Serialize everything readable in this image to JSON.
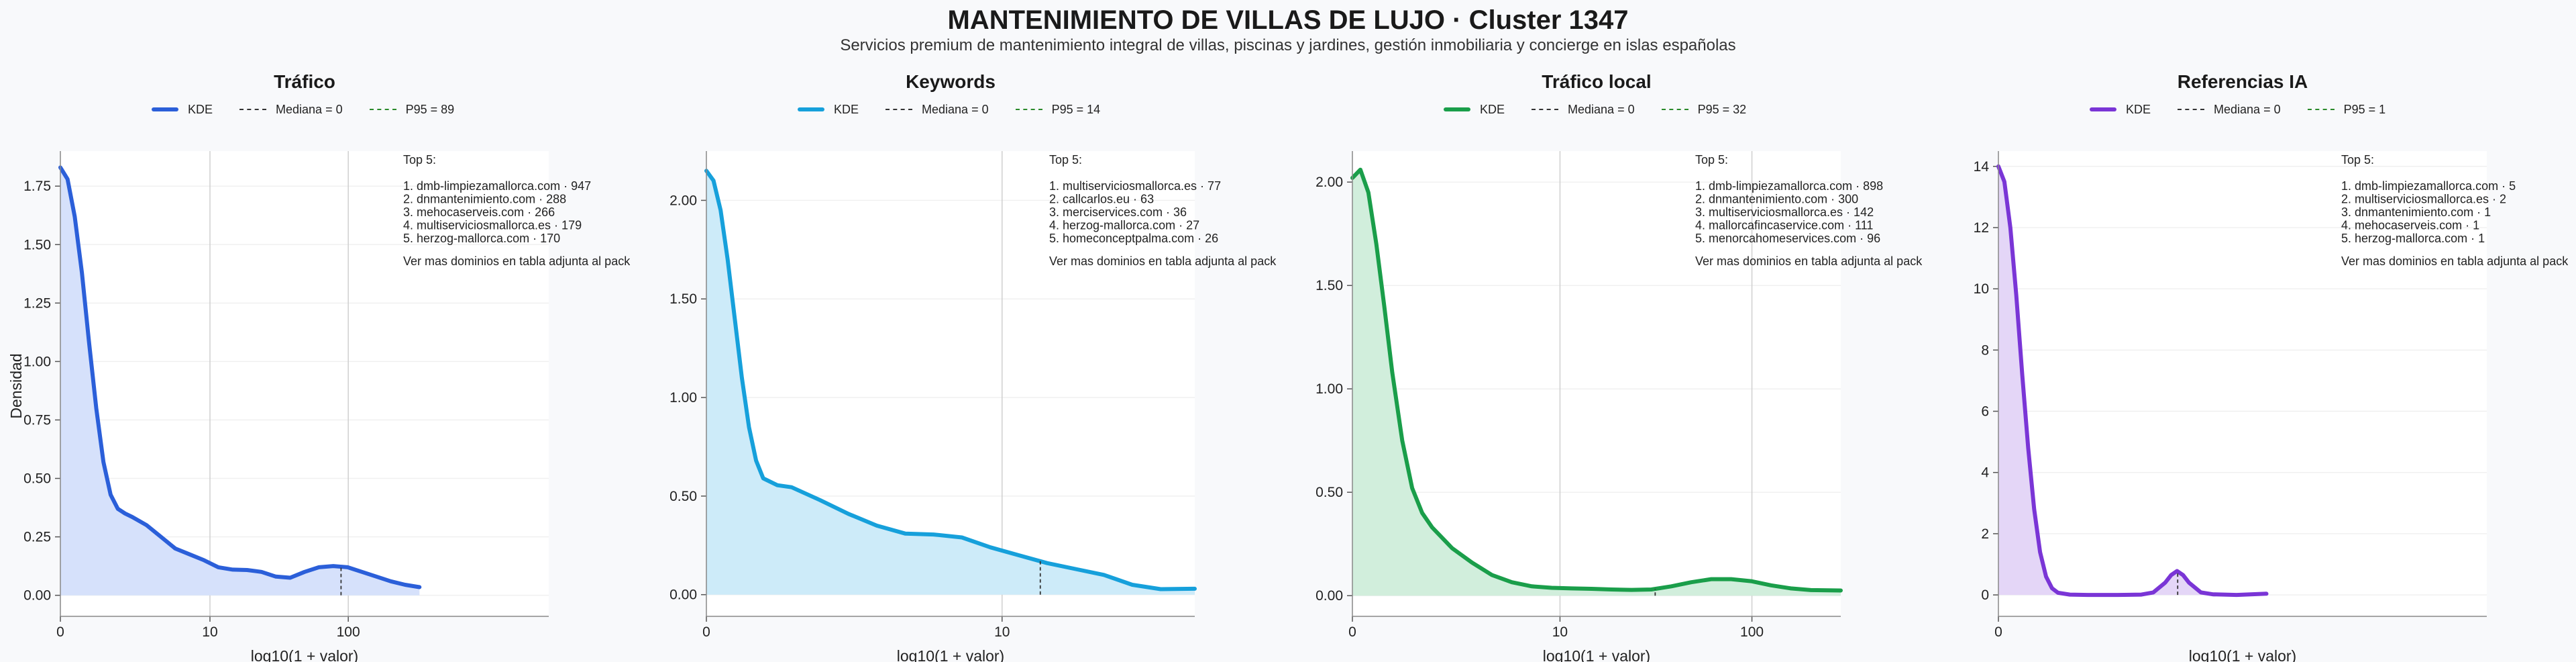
{
  "header": {
    "title": "MANTENIMIENTO DE VILLAS DE LUJO · Cluster 1347",
    "subtitle": "Servicios premium de mantenimiento integral de villas, piscinas y jardines, gestión inmobiliaria y concierge en islas españolas"
  },
  "legend_labels": {
    "kde": "KDE"
  },
  "y_axis_label": "Densidad",
  "chart_data": [
    {
      "type": "area",
      "title": "Tráfico",
      "xlabel": "log10(1 + valor)",
      "ylabel": "Densidad",
      "x_scale": "log10(1+x)",
      "x_ticks": [
        0,
        10,
        100
      ],
      "x_range": [
        0,
        3.4
      ],
      "y_ticks": [
        0.0,
        0.25,
        0.5,
        0.75,
        1.0,
        1.25,
        1.5,
        1.75
      ],
      "ylim": [
        -0.09,
        1.9
      ],
      "color": "#2b5fd9",
      "fill": "#d6e1fb",
      "median_label": "Mediana = 0",
      "p95_label": "P95 = 89",
      "median_log": 0,
      "p95_log": 1.954,
      "curve": {
        "x": [
          0,
          0.05,
          0.1,
          0.15,
          0.2,
          0.25,
          0.3,
          0.35,
          0.4,
          0.45,
          0.5,
          0.6,
          0.7,
          0.8,
          0.9,
          1.0,
          1.1,
          1.2,
          1.3,
          1.4,
          1.5,
          1.6,
          1.7,
          1.8,
          1.9,
          2.0,
          2.1,
          2.2,
          2.3,
          2.4,
          2.5
        ],
        "y": [
          1.83,
          1.78,
          1.62,
          1.38,
          1.08,
          0.8,
          0.57,
          0.43,
          0.37,
          0.35,
          0.335,
          0.3,
          0.25,
          0.2,
          0.175,
          0.15,
          0.12,
          0.11,
          0.108,
          0.1,
          0.08,
          0.075,
          0.1,
          0.12,
          0.125,
          0.12,
          0.1,
          0.08,
          0.06,
          0.045,
          0.035
        ]
      },
      "top5": {
        "heading": "Top 5:",
        "items": [
          "1. dmb-limpiezamallorca.com · 947",
          "2. dnmantenimiento.com · 288",
          "3. mehocaserveis.com · 266",
          "4. multiserviciosmallorca.es · 179",
          "5. herzog-mallorca.com · 170"
        ],
        "footer": "Ver mas dominios en tabla adjunta al pack"
      }
    },
    {
      "type": "area",
      "title": "Keywords",
      "xlabel": "log10(1 + valor)",
      "x_scale": "log10(1+x)",
      "x_ticks": [
        0,
        10
      ],
      "x_range": [
        0,
        1.72
      ],
      "y_ticks": [
        0.0,
        0.5,
        1.0,
        1.5,
        2.0
      ],
      "ylim": [
        -0.11,
        2.25
      ],
      "color": "#16a0db",
      "fill": "#cdebf9",
      "median_label": "Mediana = 0",
      "p95_label": "P95 = 14",
      "median_log": 0,
      "p95_log": 1.176,
      "curve": {
        "x": [
          0,
          0.025,
          0.05,
          0.075,
          0.1,
          0.125,
          0.15,
          0.175,
          0.2,
          0.25,
          0.3,
          0.4,
          0.5,
          0.6,
          0.7,
          0.8,
          0.9,
          1.0,
          1.1,
          1.2,
          1.3,
          1.4,
          1.5,
          1.6,
          1.72
        ],
        "y": [
          2.15,
          2.1,
          1.95,
          1.7,
          1.4,
          1.1,
          0.85,
          0.68,
          0.59,
          0.555,
          0.545,
          0.48,
          0.41,
          0.35,
          0.31,
          0.305,
          0.29,
          0.24,
          0.2,
          0.16,
          0.13,
          0.1,
          0.05,
          0.028,
          0.03
        ]
      },
      "top5": {
        "heading": "Top 5:",
        "items": [
          "1. multiserviciosmallorca.es · 77",
          "2. callcarlos.eu · 63",
          "3. merciservices.com · 36",
          "4. herzog-mallorca.com · 27",
          "5. homeconceptpalma.com · 26"
        ],
        "footer": "Ver mas dominios en tabla adjunta al pack"
      }
    },
    {
      "type": "area",
      "title": "Tráfico local",
      "xlabel": "log10(1 + valor)",
      "x_scale": "log10(1+x)",
      "x_ticks": [
        0,
        10,
        100
      ],
      "x_range": [
        0,
        2.45
      ],
      "y_ticks": [
        0.0,
        0.5,
        1.0,
        1.5,
        2.0
      ],
      "ylim": [
        -0.1,
        2.15
      ],
      "color": "#1a9e4a",
      "fill": "#d1eedc",
      "median_label": "Mediana = 0",
      "p95_label": "P95 = 32",
      "median_log": 0,
      "p95_log": 1.519,
      "curve": {
        "x": [
          0,
          0.04,
          0.08,
          0.12,
          0.16,
          0.2,
          0.25,
          0.3,
          0.35,
          0.4,
          0.5,
          0.6,
          0.7,
          0.8,
          0.9,
          1.0,
          1.1,
          1.2,
          1.3,
          1.4,
          1.5,
          1.6,
          1.7,
          1.8,
          1.9,
          2.0,
          2.1,
          2.2,
          2.3,
          2.45
        ],
        "y": [
          2.02,
          2.06,
          1.95,
          1.7,
          1.4,
          1.08,
          0.75,
          0.52,
          0.4,
          0.33,
          0.23,
          0.16,
          0.1,
          0.065,
          0.045,
          0.038,
          0.035,
          0.033,
          0.03,
          0.028,
          0.03,
          0.045,
          0.065,
          0.08,
          0.08,
          0.07,
          0.05,
          0.035,
          0.027,
          0.025
        ]
      },
      "top5": {
        "heading": "Top 5:",
        "items": [
          "1. dmb-limpiezamallorca.com · 898",
          "2. dnmantenimiento.com · 300",
          "3. multiserviciosmallorca.es · 142",
          "4. mallorcafincaservice.com · 111",
          "5. menorcahomeservices.com · 96"
        ],
        "footer": "Ver mas dominios en tabla adjunta al pack"
      }
    },
    {
      "type": "area",
      "title": "Referencias IA",
      "xlabel": "log10(1 + valor)",
      "x_scale": "log10(1+x)",
      "x_ticks": [
        0
      ],
      "x_range": [
        0,
        0.82
      ],
      "y_ticks": [
        0,
        2,
        4,
        6,
        8,
        10,
        12,
        14
      ],
      "ylim": [
        -0.7,
        14.5
      ],
      "color": "#7a35d6",
      "fill": "#e4d6f7",
      "median_label": "Mediana = 0",
      "p95_label": "P95 = 1",
      "median_log": 0,
      "p95_log": 0.301,
      "curve": {
        "x": [
          0,
          0.01,
          0.02,
          0.03,
          0.04,
          0.05,
          0.06,
          0.07,
          0.08,
          0.09,
          0.1,
          0.12,
          0.15,
          0.2,
          0.24,
          0.26,
          0.28,
          0.29,
          0.3,
          0.31,
          0.32,
          0.34,
          0.36,
          0.4,
          0.45
        ],
        "y": [
          14.0,
          13.5,
          12.0,
          9.8,
          7.2,
          4.8,
          2.8,
          1.4,
          0.6,
          0.22,
          0.07,
          0.01,
          0.0,
          0.0,
          0.01,
          0.08,
          0.4,
          0.65,
          0.78,
          0.65,
          0.4,
          0.08,
          0.02,
          0.0,
          0.04
        ]
      },
      "top5": {
        "heading": "Top 5:",
        "items": [
          "1. dmb-limpiezamallorca.com · 5",
          "2. multiserviciosmallorca.es · 2",
          "3. dnmantenimiento.com · 1",
          "4. mehocaserveis.com · 1",
          "5. herzog-mallorca.com · 1"
        ],
        "footer": "Ver mas dominios en tabla adjunta al pack"
      }
    }
  ]
}
